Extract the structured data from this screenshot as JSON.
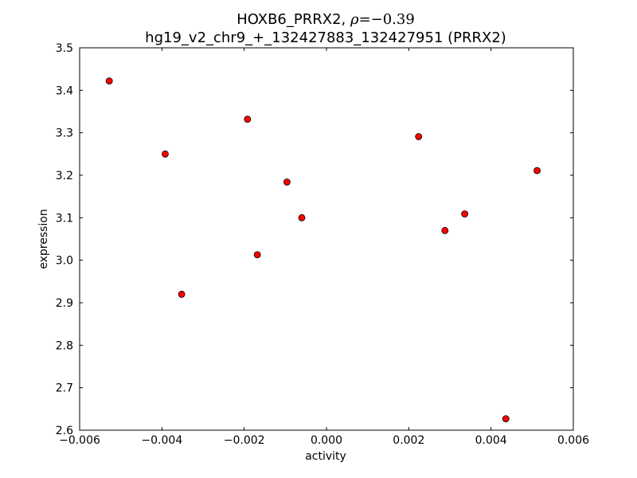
{
  "chart_data": {
    "type": "scatter",
    "title_line1_prefix": "HOXB6_PRRX2, ",
    "title_rho_symbol": "ρ",
    "title_rho_value": "=−0.39",
    "title_line2": "hg19_v2_chr9_+_132427883_132427951 (PRRX2)",
    "xlabel": "activity",
    "ylabel": "expression",
    "xlim": [
      -0.006,
      0.006
    ],
    "ylim": [
      2.6,
      3.5
    ],
    "x_ticks": [
      {
        "value": -0.006,
        "label": "−0.006"
      },
      {
        "value": -0.004,
        "label": "−0.004"
      },
      {
        "value": -0.002,
        "label": "−0.002"
      },
      {
        "value": 0.0,
        "label": "0.000"
      },
      {
        "value": 0.002,
        "label": "0.002"
      },
      {
        "value": 0.004,
        "label": "0.004"
      },
      {
        "value": 0.006,
        "label": "0.006"
      }
    ],
    "y_ticks": [
      {
        "value": 2.6,
        "label": "2.6"
      },
      {
        "value": 2.7,
        "label": "2.7"
      },
      {
        "value": 2.8,
        "label": "2.8"
      },
      {
        "value": 2.9,
        "label": "2.9"
      },
      {
        "value": 3.0,
        "label": "3.0"
      },
      {
        "value": 3.1,
        "label": "3.1"
      },
      {
        "value": 3.2,
        "label": "3.2"
      },
      {
        "value": 3.3,
        "label": "3.3"
      },
      {
        "value": 3.4,
        "label": "3.4"
      },
      {
        "value": 3.5,
        "label": "3.5"
      }
    ],
    "grid": false,
    "marker_color": "#ff0000",
    "marker_edge_color": "#000000",
    "points": [
      {
        "x": -0.00528,
        "y": 3.422
      },
      {
        "x": -0.00392,
        "y": 3.25
      },
      {
        "x": -0.00352,
        "y": 2.92
      },
      {
        "x": -0.00192,
        "y": 3.332
      },
      {
        "x": -0.00168,
        "y": 3.013
      },
      {
        "x": -0.00096,
        "y": 3.184
      },
      {
        "x": -0.0006,
        "y": 3.1
      },
      {
        "x": 0.00224,
        "y": 3.291
      },
      {
        "x": 0.00288,
        "y": 3.07
      },
      {
        "x": 0.00336,
        "y": 3.109
      },
      {
        "x": 0.00436,
        "y": 2.627
      },
      {
        "x": 0.00512,
        "y": 3.211
      }
    ]
  }
}
